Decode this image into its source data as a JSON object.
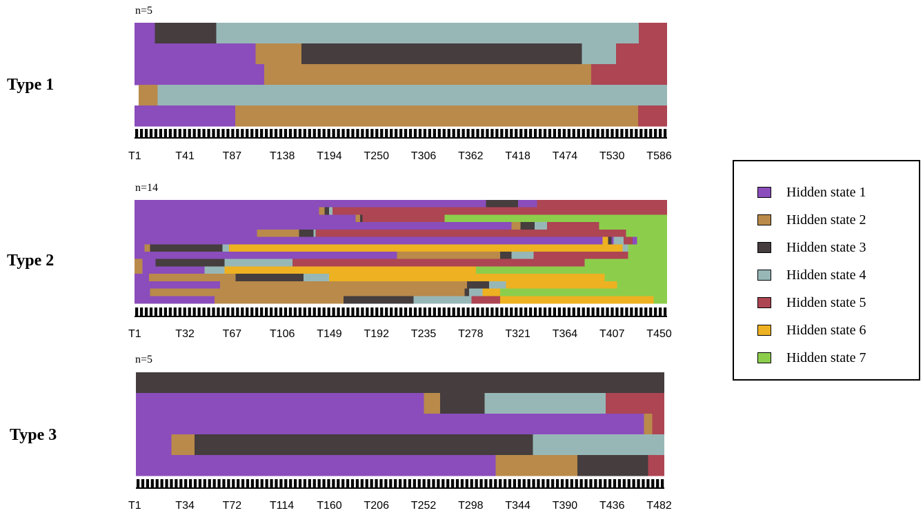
{
  "states": [
    {
      "name": "Hidden state 1",
      "color": "#8a4dbb"
    },
    {
      "name": "Hidden state 2",
      "color": "#b98a4a"
    },
    {
      "name": "Hidden state 3",
      "color": "#453d3e"
    },
    {
      "name": "Hidden state 4",
      "color": "#97b7b7"
    },
    {
      "name": "Hidden state 5",
      "color": "#ad4553"
    },
    {
      "name": "Hidden state 6",
      "color": "#edb121"
    },
    {
      "name": "Hidden state 7",
      "color": "#8cce4c"
    }
  ],
  "chart_data": [
    {
      "type": "sequence_index",
      "title": "Type 1",
      "n_label": "n=5",
      "x_min": 1,
      "x_max": 626,
      "tick_labels": [
        "T1",
        "T41",
        "T87",
        "T138",
        "T194",
        "T250",
        "T306",
        "T362",
        "T418",
        "T474",
        "T530",
        "T586"
      ],
      "sequences": [
        [
          [
            1,
            25,
            1
          ],
          [
            25,
            97,
            3
          ],
          [
            97,
            593,
            4
          ],
          [
            593,
            626,
            5
          ]
        ],
        [
          [
            1,
            143,
            1
          ],
          [
            143,
            197,
            2
          ],
          [
            197,
            526,
            3
          ],
          [
            526,
            566,
            4
          ],
          [
            566,
            626,
            5
          ]
        ],
        [
          [
            1,
            153,
            1
          ],
          [
            153,
            537,
            2
          ],
          [
            537,
            626,
            5
          ]
        ],
        [
          [
            1,
            6,
            0
          ],
          [
            6,
            28,
            2
          ],
          [
            28,
            626,
            4
          ]
        ],
        [
          [
            1,
            119,
            1
          ],
          [
            119,
            592,
            2
          ],
          [
            592,
            626,
            5
          ]
        ]
      ]
    },
    {
      "type": "sequence_index",
      "title": "Type 2",
      "n_label": "n=14",
      "x_min": 1,
      "x_max": 480,
      "tick_labels": [
        "T1",
        "T32",
        "T67",
        "T106",
        "T149",
        "T192",
        "T235",
        "T278",
        "T321",
        "T364",
        "T407",
        "T450"
      ],
      "sequences": [
        [
          [
            1,
            317,
            1
          ],
          [
            317,
            346,
            3
          ],
          [
            346,
            363,
            1
          ],
          [
            363,
            480,
            5
          ]
        ],
        [
          [
            1,
            167,
            1
          ],
          [
            167,
            172,
            2
          ],
          [
            172,
            176,
            3
          ],
          [
            176,
            179,
            4
          ],
          [
            179,
            480,
            5
          ]
        ],
        [
          [
            1,
            200,
            1
          ],
          [
            200,
            204,
            2
          ],
          [
            204,
            206,
            3
          ],
          [
            206,
            280,
            5
          ],
          [
            280,
            480,
            7
          ]
        ],
        [
          [
            1,
            340,
            1
          ],
          [
            340,
            348,
            2
          ],
          [
            348,
            361,
            3
          ],
          [
            361,
            372,
            4
          ],
          [
            372,
            419,
            5
          ],
          [
            419,
            480,
            7
          ]
        ],
        [
          [
            1,
            111,
            1
          ],
          [
            111,
            149,
            2
          ],
          [
            149,
            162,
            3
          ],
          [
            162,
            164,
            4
          ],
          [
            164,
            443,
            5
          ],
          [
            443,
            480,
            7
          ]
        ],
        [
          [
            1,
            422,
            1
          ],
          [
            422,
            427,
            6
          ],
          [
            427,
            430,
            3
          ],
          [
            430,
            432,
            1
          ],
          [
            432,
            441,
            4
          ],
          [
            441,
            449,
            5
          ],
          [
            449,
            453,
            1
          ],
          [
            453,
            480,
            7
          ]
        ],
        [
          [
            1,
            10,
            1
          ],
          [
            10,
            15,
            2
          ],
          [
            15,
            80,
            3
          ],
          [
            80,
            86,
            4
          ],
          [
            86,
            440,
            6
          ],
          [
            440,
            445,
            4
          ],
          [
            445,
            480,
            7
          ]
        ],
        [
          [
            1,
            237,
            1
          ],
          [
            237,
            330,
            2
          ],
          [
            330,
            340,
            3
          ],
          [
            340,
            360,
            4
          ],
          [
            360,
            445,
            5
          ],
          [
            445,
            480,
            7
          ]
        ],
        [
          [
            1,
            8,
            2
          ],
          [
            8,
            20,
            1
          ],
          [
            20,
            82,
            3
          ],
          [
            82,
            143,
            4
          ],
          [
            143,
            406,
            5
          ],
          [
            406,
            480,
            7
          ]
        ],
        [
          [
            1,
            8,
            2
          ],
          [
            8,
            64,
            1
          ],
          [
            64,
            82,
            4
          ],
          [
            82,
            308,
            6
          ],
          [
            308,
            480,
            7
          ]
        ],
        [
          [
            1,
            14,
            1
          ],
          [
            14,
            92,
            2
          ],
          [
            92,
            153,
            3
          ],
          [
            153,
            176,
            4
          ],
          [
            176,
            424,
            6
          ],
          [
            424,
            480,
            7
          ]
        ],
        [
          [
            1,
            15,
            1
          ],
          [
            15,
            78,
            1
          ],
          [
            78,
            300,
            2
          ],
          [
            300,
            320,
            3
          ],
          [
            320,
            335,
            4
          ],
          [
            335,
            435,
            6
          ],
          [
            435,
            480,
            7
          ]
        ],
        [
          [
            1,
            15,
            1
          ],
          [
            15,
            298,
            2
          ],
          [
            298,
            302,
            3
          ],
          [
            302,
            314,
            4
          ],
          [
            314,
            330,
            6
          ],
          [
            330,
            480,
            7
          ]
        ],
        [
          [
            1,
            15,
            1
          ],
          [
            15,
            73,
            1
          ],
          [
            73,
            189,
            2
          ],
          [
            189,
            252,
            3
          ],
          [
            252,
            304,
            4
          ],
          [
            304,
            330,
            5
          ],
          [
            330,
            468,
            6
          ],
          [
            468,
            480,
            7
          ]
        ]
      ]
    },
    {
      "type": "sequence_index",
      "title": "Type 3",
      "n_label": "n=5",
      "x_min": 1,
      "x_max": 524,
      "tick_labels": [
        "T1",
        "T34",
        "T72",
        "T114",
        "T160",
        "T206",
        "T252",
        "T298",
        "T344",
        "T390",
        "T436",
        "T482"
      ],
      "sequences": [
        [
          [
            1,
            524,
            3
          ]
        ],
        [
          [
            1,
            286,
            1
          ],
          [
            286,
            302,
            2
          ],
          [
            302,
            346,
            3
          ],
          [
            346,
            466,
            4
          ],
          [
            466,
            524,
            5
          ]
        ],
        [
          [
            1,
            504,
            1
          ],
          [
            504,
            512,
            2
          ],
          [
            512,
            524,
            5
          ]
        ],
        [
          [
            1,
            36,
            1
          ],
          [
            36,
            59,
            2
          ],
          [
            59,
            394,
            3
          ],
          [
            394,
            524,
            4
          ]
        ],
        [
          [
            1,
            357,
            1
          ],
          [
            357,
            438,
            2
          ],
          [
            438,
            508,
            3
          ],
          [
            508,
            524,
            5
          ]
        ]
      ]
    }
  ]
}
